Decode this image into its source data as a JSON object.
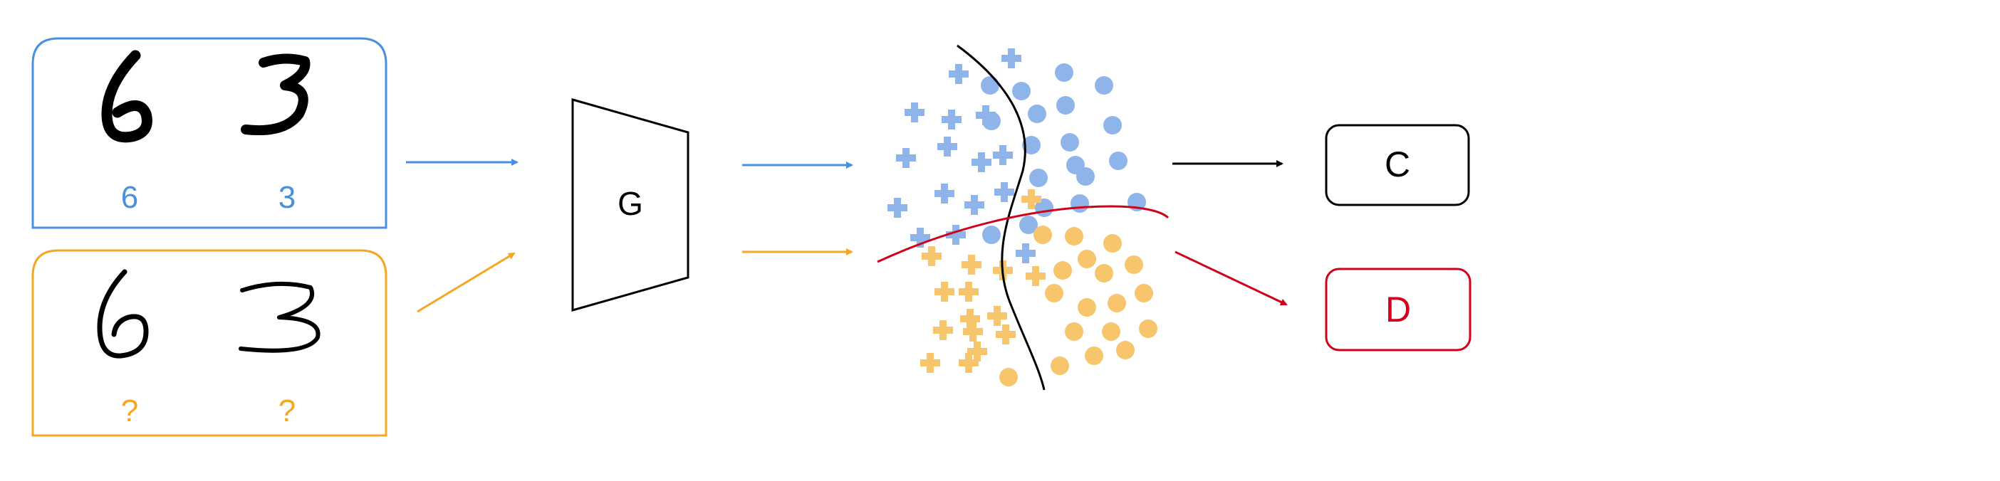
{
  "source_panel": {
    "digits": [
      "6",
      "3"
    ],
    "labels": [
      "6",
      "3"
    ],
    "color": "#4a8fe0"
  },
  "target_panel": {
    "digits": [
      "6",
      "3"
    ],
    "labels": [
      "?",
      "?"
    ],
    "color": "#f5a623"
  },
  "generator": {
    "label": "G"
  },
  "classifier": {
    "label": "C"
  },
  "discriminator": {
    "label": "D",
    "color": "#d0021b"
  },
  "colors": {
    "source": "#4a8fe0",
    "target": "#f5a623",
    "source_points": "#8fb4ea",
    "target_points": "#f7c56b",
    "discriminator": "#d0021b",
    "classifier": "#000000"
  },
  "icons": {
    "source_marker_shapes": [
      "plus",
      "circle"
    ],
    "target_marker_shapes": [
      "plus",
      "circle"
    ]
  }
}
